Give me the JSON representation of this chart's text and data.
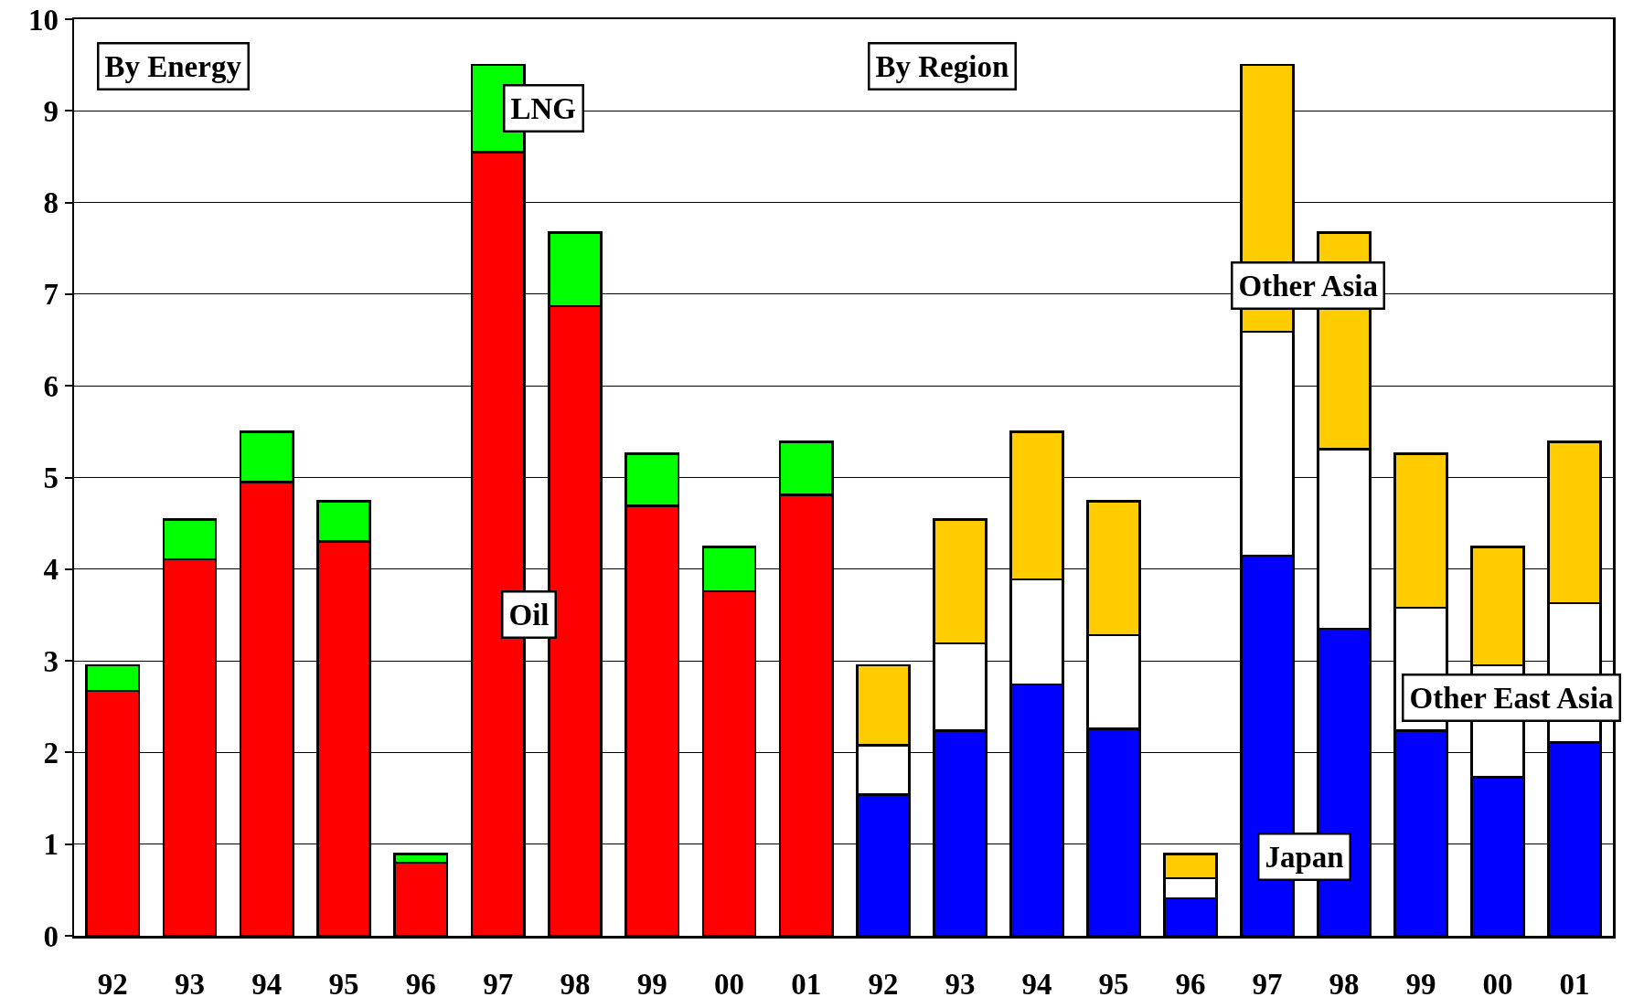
{
  "chart_data": [
    {
      "type": "bar",
      "stacked": true,
      "categories": [
        "92",
        "93",
        "94",
        "95",
        "96",
        "97",
        "98",
        "99",
        "00",
        "01"
      ],
      "ylim": [
        0,
        10
      ],
      "yticks": [
        0,
        1,
        2,
        3,
        4,
        5,
        6,
        7,
        8,
        9,
        10
      ],
      "grid": "y",
      "legend": false,
      "series": [
        {
          "name": "Oil",
          "color": "#ff0000",
          "values": [
            2.67,
            4.11,
            4.95,
            4.3,
            0.8,
            8.55,
            6.87,
            4.69,
            3.76,
            4.81
          ]
        },
        {
          "name": "LNG",
          "color": "#00ff00",
          "values": [
            0.28,
            0.43,
            0.55,
            0.44,
            0.09,
            0.95,
            0.8,
            0.57,
            0.48,
            0.58
          ]
        }
      ],
      "annotations": [
        "By Energy"
      ]
    },
    {
      "type": "bar",
      "stacked": true,
      "categories": [
        "92",
        "93",
        "94",
        "95",
        "96",
        "97",
        "98",
        "99",
        "00",
        "01"
      ],
      "ylim": [
        0,
        10
      ],
      "yticks": [
        0,
        1,
        2,
        3,
        4,
        5,
        6,
        7,
        8,
        9,
        10
      ],
      "grid": "y",
      "legend": false,
      "tick_labels": "x",
      "series": [
        {
          "name": "Japan",
          "color": "#0000ff",
          "values": [
            1.54,
            2.24,
            2.74,
            2.26,
            0.41,
            4.15,
            3.35,
            2.24,
            1.73,
            2.11
          ]
        },
        {
          "name": "Other East Asia",
          "color": "#ffffff",
          "values": [
            0.54,
            0.95,
            1.15,
            1.02,
            0.22,
            2.44,
            1.96,
            1.34,
            1.22,
            1.52
          ]
        },
        {
          "name": "Other Asia",
          "color": "#ffcc00",
          "values": [
            0.87,
            1.35,
            1.61,
            1.46,
            0.26,
            2.91,
            2.36,
            1.68,
            1.29,
            1.76
          ]
        }
      ],
      "annotations": [
        "By Region"
      ]
    }
  ]
}
